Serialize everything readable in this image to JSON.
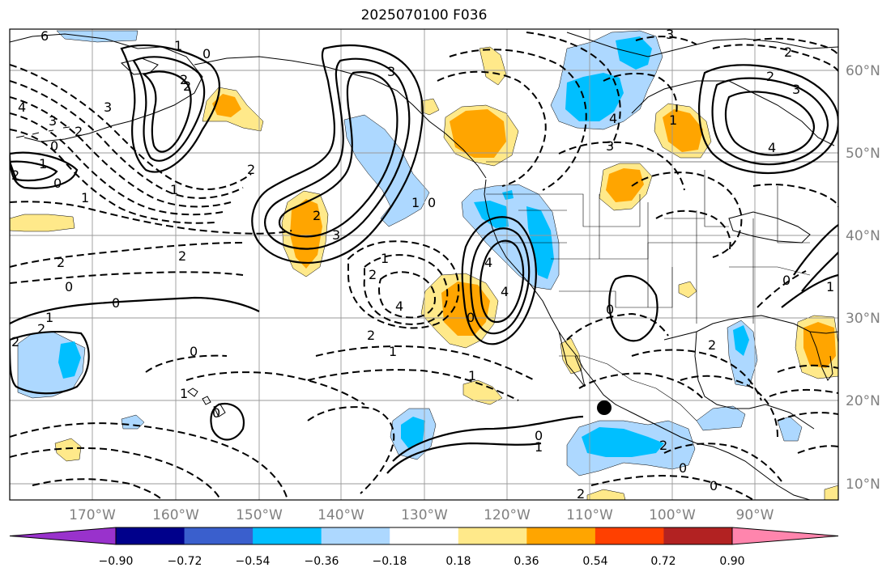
{
  "title": "2025070100 F036",
  "latitude_labels": [
    "60°N",
    "50°N",
    "40°N",
    "30°N",
    "20°N",
    "10°N"
  ],
  "longitude_labels": [
    "170°W",
    "160°W",
    "150°W",
    "140°W",
    "130°W",
    "120°W",
    "110°W",
    "100°W",
    "90°W"
  ],
  "colorbar": {
    "tick_labels": [
      "−0.90",
      "−0.72",
      "−0.54",
      "−0.36",
      "−0.18",
      "0.18",
      "0.36",
      "0.54",
      "0.72",
      "0.90"
    ],
    "colors": [
      "#9932cc",
      "#00008b",
      "#3a5fcd",
      "#00bfff",
      "#add8ff",
      "#ffffff",
      "#ffe98a",
      "#ffa500",
      "#ff4000",
      "#b22222",
      "#ff85ad"
    ]
  },
  "fill_colors": {
    "light_blue": "#add8ff",
    "blue": "#00bfff",
    "light_yellow": "#ffe98a",
    "orange": "#ffa500"
  },
  "contour_labels": {
    "l1": "6",
    "l2": "1",
    "l3": "0",
    "l4": "3",
    "l5": "4",
    "l6": "3",
    "l7": "2",
    "l8": "2",
    "l9": "0",
    "l10": "1",
    "l11": "0",
    "l12": "1",
    "l13": "2",
    "l14": "2",
    "l15": "1",
    "l16": "2",
    "l17": "0",
    "l18": "2",
    "l19": "3",
    "l20": "2",
    "l21": "1",
    "l22": "2",
    "l23": "4",
    "l24": "1",
    "l25": "1",
    "l26": "0",
    "l27": "3",
    "l28": "2",
    "l29": "4",
    "l30": "0",
    "l31": "4",
    "l32": "2",
    "l33": "0",
    "l34": "1",
    "l35": "0",
    "l36": "2",
    "l37": "2",
    "l38": "0",
    "l39": "1",
    "l40": "0",
    "l41": "1",
    "l42": "0",
    "l43": "2",
    "l44": "1",
    "l45": "2",
    "l46": "0",
    "l47": "3",
    "l48": "4",
    "l49": "3",
    "l50": "2",
    "l51": "3",
    "l52": "2",
    "l53": "4",
    "l54": "0",
    "l55": "1",
    "l56": "0",
    "l57": "2",
    "l58": "1"
  }
}
